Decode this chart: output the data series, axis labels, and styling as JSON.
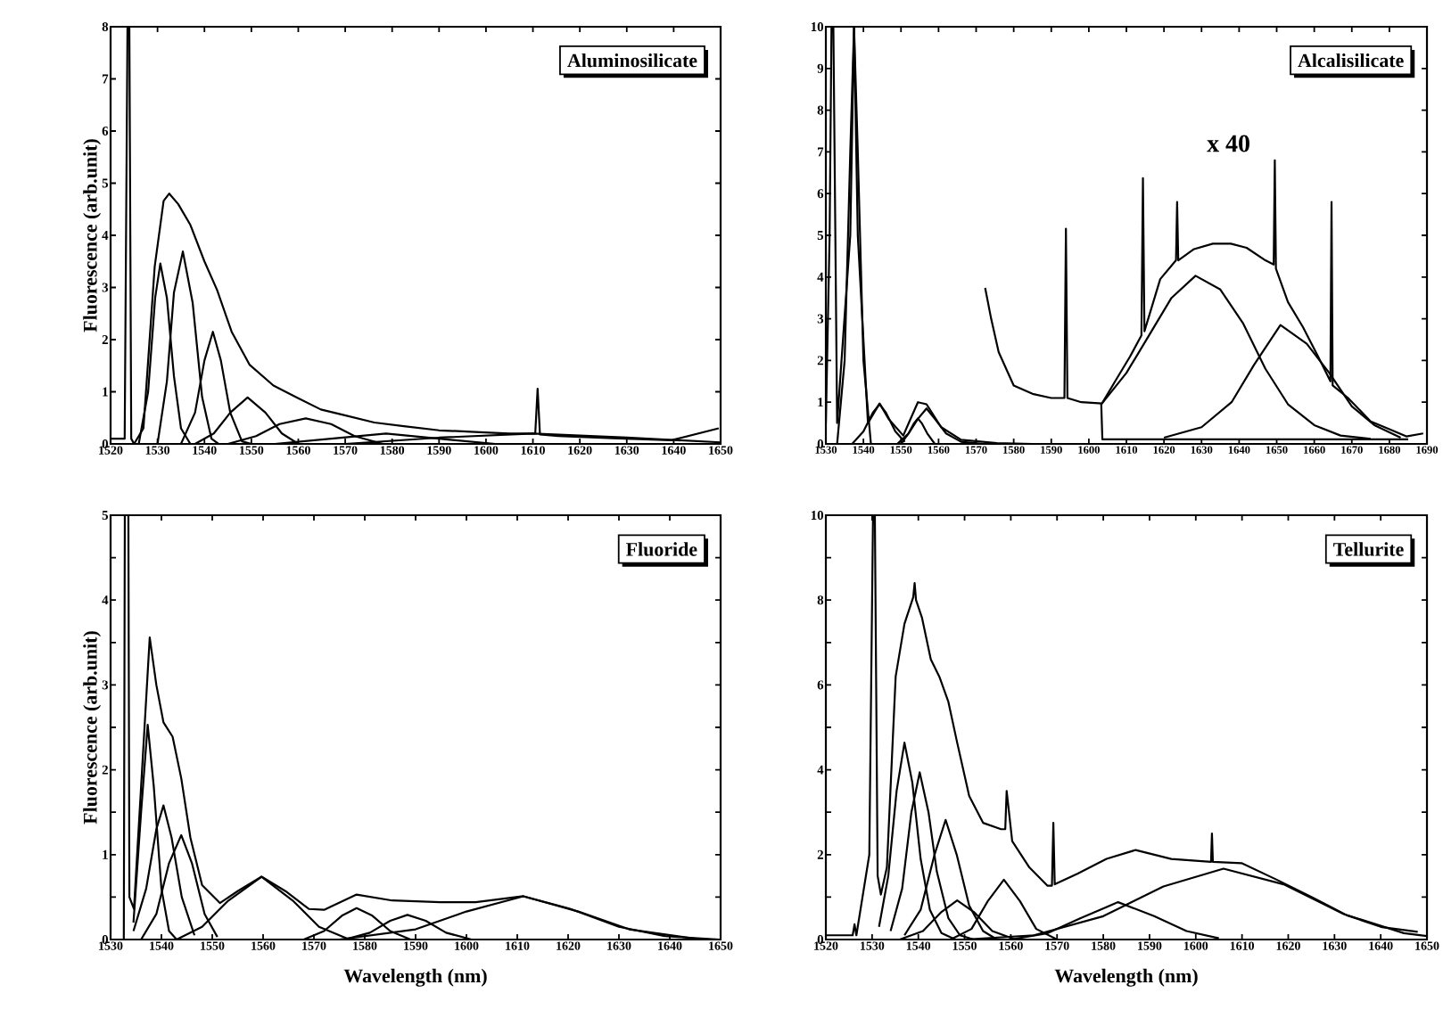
{
  "chart_data": [
    {
      "type": "line",
      "title": "Aluminosilicate",
      "ylabel": "Fluorescence (arb.unit)",
      "xlim": [
        1520,
        1650
      ],
      "ylim": [
        0,
        8
      ],
      "xticks": [
        1520,
        1530,
        1540,
        1550,
        1560,
        1570,
        1580,
        1590,
        1600,
        1610,
        1620,
        1630,
        1640,
        1650
      ],
      "yticks": [
        0,
        1,
        2,
        3,
        4,
        5,
        6,
        7,
        8
      ],
      "series": [
        {
          "color": "#000000",
          "x": [
            1520,
            1523,
            1523.6,
            1524,
            1524.4,
            1525,
            1527,
            1529.4,
            1531.3,
            1532.5,
            1534.4,
            1537,
            1540,
            1542.7,
            1545.8,
            1549.6,
            1554.7,
            1559.7,
            1564.8,
            1569.9,
            1576.2,
            1582.5,
            1590,
            1597.7,
            1605,
            1610.5,
            1611,
            1611.5,
            1615.4,
            1627,
            1639.5,
            1649.6
          ],
          "values": [
            0.1,
            0.1,
            8,
            8,
            0.1,
            0,
            0.3,
            3.4,
            4.66,
            4.8,
            4.6,
            4.2,
            3.5,
            2.95,
            2.15,
            1.52,
            1.12,
            0.89,
            0.66,
            0.55,
            0.41,
            0.34,
            0.26,
            0.23,
            0.2,
            0.2,
            1.06,
            0.18,
            0.15,
            0.11,
            0.07,
            0.3
          ]
        },
        {
          "color": "#000000",
          "x": [
            1526,
            1528,
            1529.5,
            1530.6,
            1532,
            1533.5,
            1535,
            1537
          ],
          "values": [
            0,
            1.0,
            2.8,
            3.46,
            2.8,
            1.3,
            0.3,
            0
          ]
        },
        {
          "color": "#000000",
          "x": [
            1530,
            1532,
            1533.5,
            1535.4,
            1537.5,
            1539.5,
            1541.5,
            1543
          ],
          "values": [
            0,
            1.2,
            2.9,
            3.69,
            2.7,
            0.9,
            0.1,
            0
          ]
        },
        {
          "color": "#000000",
          "x": [
            1535,
            1538,
            1540,
            1541.8,
            1543.5,
            1545.5,
            1548,
            1550
          ],
          "values": [
            0,
            0.6,
            1.6,
            2.15,
            1.6,
            0.6,
            0.05,
            0
          ]
        },
        {
          "color": "#000000",
          "x": [
            1538,
            1542,
            1545.5,
            1549.2,
            1553,
            1556.5,
            1560
          ],
          "values": [
            0,
            0.2,
            0.6,
            0.89,
            0.6,
            0.2,
            0
          ]
        },
        {
          "color": "#000000",
          "x": [
            1545,
            1551,
            1556,
            1561.6,
            1567,
            1572,
            1578
          ],
          "values": [
            0,
            0.15,
            0.38,
            0.49,
            0.38,
            0.15,
            0
          ]
        },
        {
          "color": "#000000",
          "x": [
            1555,
            1567,
            1578.7,
            1590,
            1602
          ],
          "values": [
            0,
            0.1,
            0.2,
            0.1,
            0
          ]
        },
        {
          "color": "#000000",
          "x": [
            1570,
            1590,
            1610,
            1630,
            1650
          ],
          "values": [
            0,
            0.12,
            0.2,
            0.12,
            0.03
          ]
        }
      ]
    },
    {
      "type": "line",
      "title": "Alcalisilicate",
      "xlim": [
        1530,
        1690
      ],
      "ylim": [
        0,
        10
      ],
      "xticks": [
        1530,
        1540,
        1550,
        1560,
        1570,
        1580,
        1590,
        1600,
        1610,
        1620,
        1630,
        1640,
        1650,
        1660,
        1670,
        1680,
        1690
      ],
      "yticks": [
        0,
        1,
        2,
        3,
        4,
        5,
        6,
        7,
        8,
        9,
        10
      ],
      "annotations": [
        "x 40"
      ],
      "series": [
        {
          "color": "#000000",
          "x": [
            1530,
            1531,
            1531.5,
            1532,
            1533,
            1536.5,
            1537.5,
            1538.5,
            1541.2,
            1544.3,
            1546.7,
            1550.6,
            1554.5,
            1556.8,
            1560.7,
            1566,
            1575.5,
            1585,
            1590
          ],
          "values": [
            0.5,
            5,
            10,
            10,
            0.5,
            5,
            10,
            5,
            0.5,
            0.97,
            0.6,
            0.2,
            1.0,
            0.95,
            0.4,
            0.1,
            0.02,
            0,
            0
          ]
        },
        {
          "color": "#000000",
          "x": [
            1533,
            1535,
            1536.5,
            1537.5,
            1538.5,
            1540,
            1542
          ],
          "values": [
            0,
            2,
            7,
            10,
            7,
            2,
            0
          ]
        },
        {
          "color": "#000000",
          "x": [
            1537,
            1540,
            1542.5,
            1544.3,
            1546,
            1548.5,
            1551
          ],
          "values": [
            0,
            0.3,
            0.75,
            0.95,
            0.75,
            0.3,
            0.05
          ]
        },
        {
          "color": "#000000",
          "x": [
            1550,
            1552,
            1553.5,
            1554.5,
            1555.5,
            1557,
            1559
          ],
          "values": [
            0,
            0.25,
            0.5,
            0.61,
            0.5,
            0.25,
            0
          ]
        },
        {
          "color": "#000000",
          "x": [
            1549,
            1552,
            1554.5,
            1556.8,
            1559,
            1562,
            1566,
            1572
          ],
          "values": [
            0,
            0.25,
            0.6,
            0.85,
            0.6,
            0.25,
            0.05,
            0
          ]
        },
        {
          "color": "#000000",
          "x": [
            1572.4,
            1574,
            1576,
            1580,
            1585,
            1590,
            1593.5,
            1593.9,
            1594.3,
            1598,
            1603.5,
            1607,
            1611,
            1614,
            1614.4,
            1614.8,
            1619,
            1623.2,
            1623.5,
            1623.8,
            1628,
            1633,
            1637.8,
            1642,
            1647,
            1649.2,
            1649.5,
            1649.8,
            1653,
            1657,
            1661,
            1664.3,
            1664.6,
            1664.9,
            1669,
            1675,
            1680,
            1684.5,
            1689
          ],
          "values": [
            3.74,
            3.0,
            2.2,
            1.4,
            1.2,
            1.1,
            1.1,
            5.16,
            1.1,
            1.0,
            0.97,
            1.5,
            2.1,
            2.6,
            6.37,
            2.7,
            3.95,
            4.4,
            5.8,
            4.4,
            4.67,
            4.8,
            4.8,
            4.7,
            4.4,
            4.3,
            6.8,
            4.2,
            3.4,
            2.8,
            2.1,
            1.5,
            5.8,
            1.4,
            1.1,
            0.54,
            0.35,
            0.18,
            0.25
          ]
        },
        {
          "color": "#000000",
          "x": [
            1603.3,
            1603.6,
            1685
          ],
          "values": [
            0.97,
            0.11,
            0.11
          ]
        },
        {
          "color": "#000000",
          "x": [
            1603.5,
            1610,
            1616,
            1622,
            1628.4,
            1635,
            1641,
            1647,
            1653,
            1660,
            1667,
            1675
          ],
          "values": [
            0.97,
            1.7,
            2.6,
            3.5,
            4.03,
            3.7,
            2.9,
            1.8,
            0.95,
            0.45,
            0.2,
            0.12
          ]
        },
        {
          "color": "#000000",
          "x": [
            1620,
            1630,
            1638,
            1644,
            1651,
            1658,
            1664,
            1670,
            1676,
            1683
          ],
          "values": [
            0.15,
            0.4,
            1.0,
            1.9,
            2.85,
            2.4,
            1.7,
            0.9,
            0.45,
            0.15
          ]
        }
      ]
    },
    {
      "type": "line",
      "title": "Fluoride",
      "xlabel": "Wavelength (nm)",
      "ylabel": "Fluorescence (arb.unit)",
      "xlim": [
        1530,
        1650
      ],
      "ylim": [
        0,
        5
      ],
      "xticks": [
        1530,
        1540,
        1550,
        1560,
        1570,
        1580,
        1590,
        1600,
        1610,
        1620,
        1630,
        1640,
        1650
      ],
      "yticks": [
        0,
        {
          "value": 0.5,
          "label": null
        },
        1,
        {
          "value": 1.5,
          "label": null
        },
        2,
        {
          "value": 2.5,
          "label": null
        },
        3,
        {
          "value": 3.5,
          "label": null
        },
        4,
        {
          "value": 4.5,
          "label": null
        },
        5
      ],
      "series": [
        {
          "color": "#000000",
          "x": [
            1530,
            1532.6,
            1532.8,
            1533.5,
            1533.7,
            1534.6,
            1536,
            1537.7,
            1539,
            1540.4,
            1542.2,
            1543.9,
            1545.7,
            1548,
            1551.5,
            1555,
            1559.7,
            1564.4,
            1569,
            1572,
            1578.4,
            1585.4,
            1594.8,
            1601.8,
            1611.2,
            1620.5,
            1630,
            1639,
            1649.8
          ],
          "values": [
            0,
            0,
            5,
            5,
            0.5,
            0.36,
            1.8,
            3.56,
            3.0,
            2.56,
            2.39,
            1.9,
            1.2,
            0.64,
            0.43,
            0.57,
            0.74,
            0.57,
            0.36,
            0.35,
            0.53,
            0.46,
            0.44,
            0.44,
            0.51,
            0.36,
            0.15,
            0.04,
            0
          ]
        },
        {
          "color": "#000000",
          "x": [
            1534.5,
            1536,
            1537.3,
            1538.5,
            1540,
            1541.5,
            1543
          ],
          "values": [
            0.2,
            1.5,
            2.53,
            1.8,
            0.6,
            0.1,
            0
          ]
        },
        {
          "color": "#000000",
          "x": [
            1534.5,
            1537,
            1539,
            1540.4,
            1542,
            1544,
            1546.5
          ],
          "values": [
            0.1,
            0.6,
            1.3,
            1.58,
            1.2,
            0.5,
            0.05
          ]
        },
        {
          "color": "#000000",
          "x": [
            1536,
            1539,
            1541.5,
            1543.9,
            1546,
            1548.5,
            1551
          ],
          "values": [
            0,
            0.3,
            0.9,
            1.23,
            0.9,
            0.3,
            0.03
          ]
        },
        {
          "color": "#000000",
          "x": [
            1543,
            1548,
            1553,
            1559.7,
            1566,
            1571,
            1577
          ],
          "values": [
            0,
            0.15,
            0.45,
            0.74,
            0.45,
            0.15,
            0
          ]
        },
        {
          "color": "#000000",
          "x": [
            1568,
            1572,
            1575.5,
            1578.4,
            1581.5,
            1585,
            1589
          ],
          "values": [
            0,
            0.1,
            0.28,
            0.37,
            0.28,
            0.1,
            0
          ]
        },
        {
          "color": "#000000",
          "x": [
            1576,
            1581,
            1585,
            1588.4,
            1592,
            1596,
            1601
          ],
          "values": [
            0,
            0.08,
            0.22,
            0.29,
            0.22,
            0.08,
            0
          ]
        },
        {
          "color": "#000000",
          "x": [
            1575,
            1590,
            1600,
            1611.2,
            1622,
            1632,
            1645
          ],
          "values": [
            0,
            0.12,
            0.33,
            0.51,
            0.33,
            0.12,
            0.01
          ]
        }
      ]
    },
    {
      "type": "line",
      "title": "Tellurite",
      "xlabel": "Wavelength (nm)",
      "xlim": [
        1520,
        1650
      ],
      "ylim": [
        0,
        10
      ],
      "xticks": [
        1520,
        1530,
        1540,
        1550,
        1560,
        1570,
        1580,
        1590,
        1600,
        1610,
        1620,
        1630,
        1640,
        1650
      ],
      "yticks": [
        0,
        {
          "value": 1,
          "label": null
        },
        2,
        {
          "value": 3,
          "label": null
        },
        4,
        {
          "value": 5,
          "label": null
        },
        6,
        {
          "value": 7,
          "label": null
        },
        8,
        {
          "value": 9,
          "label": null
        },
        10
      ],
      "series": [
        {
          "color": "#000000",
          "x": [
            1520,
            1525.8,
            1526.2,
            1526.6,
            1529.4,
            1530.2,
            1530.6,
            1531.2,
            1531.9,
            1533.2,
            1535.1,
            1537,
            1538.9,
            1539.2,
            1539.5,
            1540.8,
            1542.7,
            1544.6,
            1546.5,
            1548.4,
            1551,
            1554,
            1557.9,
            1558.8,
            1559.1,
            1560.3,
            1564,
            1567.9,
            1568.9,
            1569.2,
            1569.5,
            1574.4,
            1580.7,
            1587,
            1594.7,
            1603.3,
            1603.5,
            1603.7,
            1609.9,
            1617.5,
            1625.1,
            1632.7,
            1640.3,
            1648
          ],
          "values": [
            0.1,
            0.1,
            0.36,
            0.1,
            2,
            10,
            10,
            1.5,
            1.06,
            1.7,
            6.2,
            7.44,
            8.07,
            8.4,
            8.0,
            7.58,
            6.6,
            6.18,
            5.6,
            4.64,
            3.38,
            2.75,
            2.6,
            2.6,
            3.5,
            2.32,
            1.7,
            1.27,
            1.27,
            2.75,
            1.3,
            1.55,
            1.9,
            2.11,
            1.9,
            1.83,
            2.5,
            1.83,
            1.8,
            1.41,
            1.0,
            0.57,
            0.29,
            0.18
          ]
        },
        {
          "color": "#000000",
          "x": [
            1531.5,
            1533.5,
            1535.3,
            1537,
            1538.7,
            1540.5,
            1542.5,
            1545,
            1548
          ],
          "values": [
            0.3,
            1.5,
            3.5,
            4.64,
            3.7,
            1.9,
            0.7,
            0.15,
            0
          ]
        },
        {
          "color": "#000000",
          "x": [
            1534,
            1536.5,
            1538.5,
            1540.3,
            1542.2,
            1544,
            1546.5,
            1549,
            1552
          ],
          "values": [
            0.2,
            1.2,
            3.0,
            3.94,
            3.0,
            1.6,
            0.5,
            0.1,
            0
          ]
        },
        {
          "color": "#000000",
          "x": [
            1537,
            1540.5,
            1543.5,
            1545.9,
            1548.3,
            1551,
            1554,
            1557
          ],
          "values": [
            0.1,
            0.7,
            2.0,
            2.82,
            2.0,
            0.8,
            0.2,
            0
          ]
        },
        {
          "color": "#000000",
          "x": [
            1536,
            1541,
            1545,
            1548.4,
            1552,
            1556,
            1561
          ],
          "values": [
            0,
            0.2,
            0.65,
            0.92,
            0.65,
            0.2,
            0
          ]
        },
        {
          "color": "#000000",
          "x": [
            1547,
            1551.5,
            1555,
            1558.5,
            1562,
            1565.5,
            1570
          ],
          "values": [
            0,
            0.25,
            0.9,
            1.41,
            0.9,
            0.25,
            0
          ]
        },
        {
          "color": "#000000",
          "x": [
            1560,
            1568,
            1575,
            1583.2,
            1591,
            1598,
            1605
          ],
          "values": [
            0,
            0.15,
            0.5,
            0.88,
            0.55,
            0.2,
            0.03
          ]
        },
        {
          "color": "#000000",
          "x": [
            1550,
            1565,
            1580,
            1593,
            1606,
            1619,
            1632,
            1645,
            1650
          ],
          "values": [
            0,
            0.1,
            0.55,
            1.25,
            1.67,
            1.3,
            0.6,
            0.15,
            0.08
          ]
        }
      ]
    }
  ]
}
